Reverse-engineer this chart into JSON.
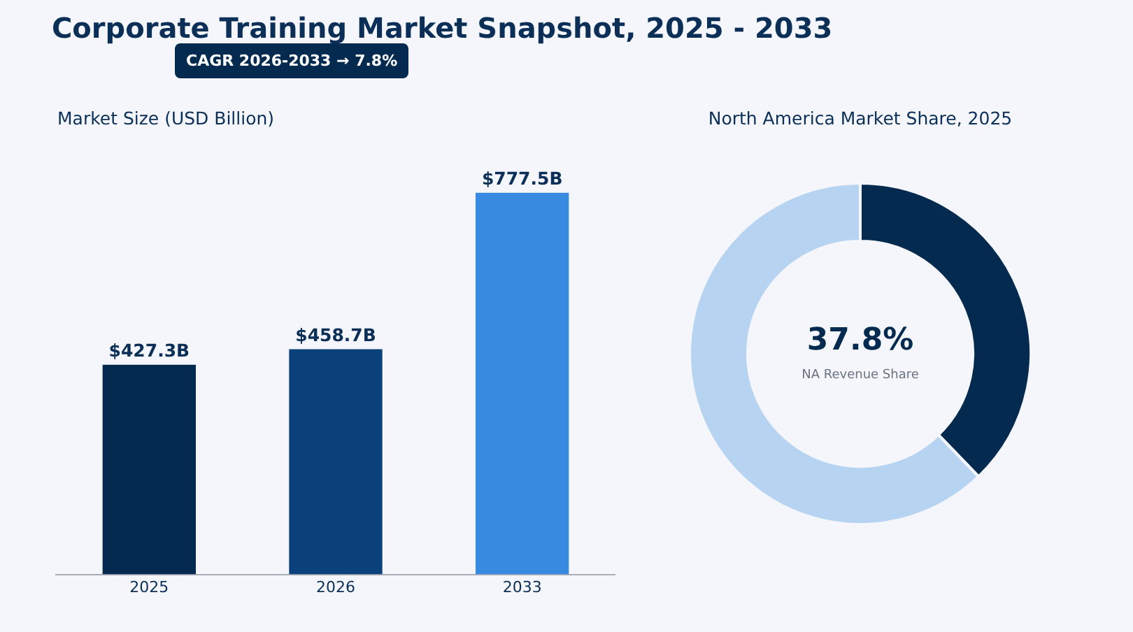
{
  "chart_data": [
    {
      "type": "bar",
      "title": "Corporate Training Market Snapshot, 2025 - 2033",
      "subtitle": "Market Size (USD Billion)",
      "annotations": [
        "CAGR 2026-2033  →  7.8%"
      ],
      "categories": [
        "2025",
        "2026",
        "2033"
      ],
      "values": [
        427.3,
        458.7,
        777.5
      ],
      "colors": [
        "#03294f",
        "#0b417a",
        "#388ae0"
      ],
      "value_labels": [
        "$427.3B",
        "$458.7B",
        "$777.5B"
      ],
      "grid": false,
      "legend": false
    },
    {
      "type": "donut",
      "title": "North America Market Share, 2025",
      "annotations": [
        "NA Revenue Share"
      ],
      "categories": [
        null,
        null
      ],
      "values": [
        37.8,
        62.2
      ],
      "colors": [
        "#052a50",
        "#b6d4f2"
      ],
      "value_labels": [
        "37.8%",
        null
      ],
      "legend": false
    }
  ]
}
